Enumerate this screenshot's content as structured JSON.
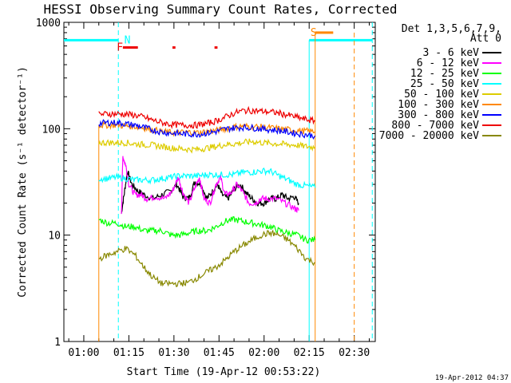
{
  "chart_data": {
    "type": "line",
    "title": "HESSI Observing Summary Count Rates, Corrected",
    "xlabel": "Start Time (19-Apr-12 00:53:22)",
    "ylabel": "Corrected Count Rate (s⁻¹ detector⁻¹)",
    "x_tick_labels": [
      "01:00",
      "01:15",
      "01:30",
      "01:45",
      "02:00",
      "02:15",
      "02:30"
    ],
    "x_tick_minutes": [
      60,
      75,
      90,
      105,
      120,
      135,
      150
    ],
    "xlim_minutes": [
      53.37,
      157
    ],
    "y_scale": "log",
    "ylim": [
      1,
      1000
    ],
    "y_tick_labels": [
      "1",
      "10",
      "100",
      "1000"
    ],
    "y_tick_values": [
      1,
      10,
      100,
      1000
    ],
    "legend_header": [
      "Det 1,3,5,6,7,9,",
      "Att 0"
    ],
    "legend_placement": "right",
    "series": [
      {
        "name": "3 - 6 keV",
        "color": "#000000",
        "points": [
          [
            72.5,
            16
          ],
          [
            73.5,
            25
          ],
          [
            74.5,
            40
          ],
          [
            76,
            30
          ],
          [
            78,
            26
          ],
          [
            80,
            24
          ],
          [
            83,
            22
          ],
          [
            86,
            24
          ],
          [
            89,
            26
          ],
          [
            91,
            30
          ],
          [
            93,
            23
          ],
          [
            95,
            22
          ],
          [
            97,
            32
          ],
          [
            99,
            30
          ],
          [
            101,
            22
          ],
          [
            103,
            26
          ],
          [
            104.5,
            30
          ],
          [
            106,
            24
          ],
          [
            108,
            22
          ],
          [
            110,
            27
          ],
          [
            112,
            30
          ],
          [
            114,
            25
          ],
          [
            116,
            22
          ],
          [
            118,
            20
          ],
          [
            120,
            20
          ],
          [
            122,
            22
          ],
          [
            124,
            22
          ],
          [
            126,
            24
          ],
          [
            128,
            22
          ],
          [
            130,
            23
          ],
          [
            131.5,
            20
          ]
        ]
      },
      {
        "name": "6 - 12 keV",
        "color": "#ff00ff",
        "points": [
          [
            72.5,
            15
          ],
          [
            73,
            55
          ],
          [
            74,
            45
          ],
          [
            75,
            30
          ],
          [
            77,
            24
          ],
          [
            79,
            24
          ],
          [
            81,
            22
          ],
          [
            84,
            23
          ],
          [
            87,
            22
          ],
          [
            89.5,
            26
          ],
          [
            91.5,
            35
          ],
          [
            93,
            25
          ],
          [
            95,
            20
          ],
          [
            97,
            28
          ],
          [
            98.5,
            35
          ],
          [
            100,
            22
          ],
          [
            102,
            20
          ],
          [
            104,
            30
          ],
          [
            105.5,
            35
          ],
          [
            107,
            24
          ],
          [
            109,
            25
          ],
          [
            111,
            30
          ],
          [
            113,
            25
          ],
          [
            115,
            20
          ],
          [
            117,
            20
          ],
          [
            119,
            22
          ],
          [
            121,
            22
          ],
          [
            124,
            22
          ],
          [
            127,
            20
          ],
          [
            130,
            18
          ],
          [
            131.5,
            17
          ]
        ]
      },
      {
        "name": "12 - 25 keV",
        "color": "#00ff00",
        "points": [
          [
            65,
            14
          ],
          [
            68,
            13
          ],
          [
            71,
            13
          ],
          [
            74,
            12
          ],
          [
            77,
            12
          ],
          [
            80,
            11
          ],
          [
            83,
            11
          ],
          [
            86,
            11
          ],
          [
            89,
            10
          ],
          [
            92,
            10
          ],
          [
            95,
            10.5
          ],
          [
            98,
            11
          ],
          [
            101,
            11
          ],
          [
            104,
            12
          ],
          [
            107,
            13.5
          ],
          [
            110,
            14
          ],
          [
            113,
            13.5
          ],
          [
            116,
            13
          ],
          [
            119,
            12.5
          ],
          [
            122,
            12
          ],
          [
            125,
            11
          ],
          [
            128,
            10.5
          ],
          [
            131,
            10
          ],
          [
            134,
            9
          ],
          [
            137,
            9
          ]
        ]
      },
      {
        "name": "25 - 50 keV",
        "color": "#00ffff",
        "points": [
          [
            65,
            34
          ],
          [
            68,
            34
          ],
          [
            71,
            35
          ],
          [
            74,
            34
          ],
          [
            77,
            33
          ],
          [
            80,
            33
          ],
          [
            83,
            33
          ],
          [
            86,
            34
          ],
          [
            89,
            35
          ],
          [
            92,
            36
          ],
          [
            95,
            36
          ],
          [
            98,
            36
          ],
          [
            101,
            37
          ],
          [
            104,
            37
          ],
          [
            107,
            37
          ],
          [
            110,
            37
          ],
          [
            113,
            39
          ],
          [
            116,
            39
          ],
          [
            119,
            40
          ],
          [
            122,
            40
          ],
          [
            125,
            36
          ],
          [
            128,
            33
          ],
          [
            131,
            30
          ],
          [
            134,
            29
          ],
          [
            137,
            28
          ]
        ]
      },
      {
        "name": "50 - 100 keV",
        "color": "#ddcc00",
        "points": [
          [
            65,
            74
          ],
          [
            68,
            74
          ],
          [
            71,
            74
          ],
          [
            74,
            74
          ],
          [
            77,
            72
          ],
          [
            80,
            71
          ],
          [
            83,
            70
          ],
          [
            86,
            68
          ],
          [
            89,
            66
          ],
          [
            92,
            65
          ],
          [
            95,
            64
          ],
          [
            98,
            64
          ],
          [
            101,
            66
          ],
          [
            104,
            68
          ],
          [
            107,
            71
          ],
          [
            110,
            72
          ],
          [
            113,
            74
          ],
          [
            116,
            76
          ],
          [
            119,
            74
          ],
          [
            122,
            73
          ],
          [
            125,
            72
          ],
          [
            128,
            71
          ],
          [
            131,
            70
          ],
          [
            134,
            68
          ],
          [
            137,
            67
          ]
        ]
      },
      {
        "name": "100 - 300 keV",
        "color": "#ff8800",
        "points": [
          [
            65,
            108
          ],
          [
            68,
            108
          ],
          [
            71,
            108
          ],
          [
            74,
            106
          ],
          [
            77,
            105
          ],
          [
            80,
            102
          ],
          [
            83,
            98
          ],
          [
            86,
            94
          ],
          [
            89,
            92
          ],
          [
            92,
            92
          ],
          [
            95,
            93
          ],
          [
            98,
            92
          ],
          [
            101,
            94
          ],
          [
            104,
            96
          ],
          [
            107,
            100
          ],
          [
            110,
            104
          ],
          [
            113,
            106
          ],
          [
            116,
            105
          ],
          [
            119,
            104
          ],
          [
            122,
            102
          ],
          [
            125,
            100
          ],
          [
            128,
            98
          ],
          [
            131,
            96
          ],
          [
            134,
            95
          ],
          [
            137,
            94
          ]
        ]
      },
      {
        "name": "300 - 800 keV",
        "color": "#0000ff",
        "points": [
          [
            65,
            112
          ],
          [
            68,
            114
          ],
          [
            71,
            114
          ],
          [
            74,
            111
          ],
          [
            77,
            108
          ],
          [
            80,
            103
          ],
          [
            83,
            97
          ],
          [
            86,
            93
          ],
          [
            89,
            91
          ],
          [
            92,
            90
          ],
          [
            95,
            89
          ],
          [
            98,
            89
          ],
          [
            101,
            91
          ],
          [
            104,
            94
          ],
          [
            107,
            99
          ],
          [
            110,
            102
          ],
          [
            113,
            103
          ],
          [
            116,
            102
          ],
          [
            119,
            100
          ],
          [
            122,
            98
          ],
          [
            125,
            96
          ],
          [
            128,
            93
          ],
          [
            131,
            90
          ],
          [
            134,
            88
          ],
          [
            137,
            86
          ]
        ]
      },
      {
        "name": "800 - 7000 keV",
        "color": "#ee0000",
        "points": [
          [
            65,
            136
          ],
          [
            68,
            138
          ],
          [
            71,
            138
          ],
          [
            74,
            137
          ],
          [
            77,
            134
          ],
          [
            80,
            128
          ],
          [
            83,
            120
          ],
          [
            86,
            114
          ],
          [
            89,
            110
          ],
          [
            92,
            108
          ],
          [
            95,
            108
          ],
          [
            98,
            108
          ],
          [
            101,
            112
          ],
          [
            104,
            118
          ],
          [
            107,
            128
          ],
          [
            110,
            140
          ],
          [
            113,
            148
          ],
          [
            116,
            148
          ],
          [
            119,
            146
          ],
          [
            122,
            144
          ],
          [
            125,
            140
          ],
          [
            128,
            134
          ],
          [
            131,
            128
          ],
          [
            134,
            122
          ],
          [
            137,
            118
          ]
        ]
      },
      {
        "name": "7000 - 20000 keV",
        "color": "#888800",
        "points": [
          [
            65,
            6
          ],
          [
            68,
            6.5
          ],
          [
            71,
            7
          ],
          [
            74,
            7.5
          ],
          [
            77,
            6.5
          ],
          [
            80,
            5
          ],
          [
            83,
            4
          ],
          [
            86,
            3.5
          ],
          [
            89,
            3.5
          ],
          [
            92,
            3.5
          ],
          [
            95,
            3.6
          ],
          [
            98,
            4
          ],
          [
            101,
            4.5
          ],
          [
            104,
            5
          ],
          [
            107,
            5.8
          ],
          [
            110,
            7
          ],
          [
            113,
            8
          ],
          [
            116,
            9
          ],
          [
            119,
            10
          ],
          [
            122,
            10.5
          ],
          [
            125,
            10
          ],
          [
            128,
            9
          ],
          [
            131,
            7.5
          ],
          [
            134,
            6
          ],
          [
            137,
            5.5
          ]
        ]
      }
    ],
    "annotations": [
      {
        "text": "F",
        "color": "#ee0000",
        "x": 72,
        "y": 580
      },
      {
        "text": "N",
        "color": "#00ffff",
        "x": 74.5,
        "y": 680
      },
      {
        "text": "S",
        "color": "#ff8800",
        "x": 136.5,
        "y": 800
      }
    ]
  },
  "footer_date": "19-Apr-2012 04:37"
}
